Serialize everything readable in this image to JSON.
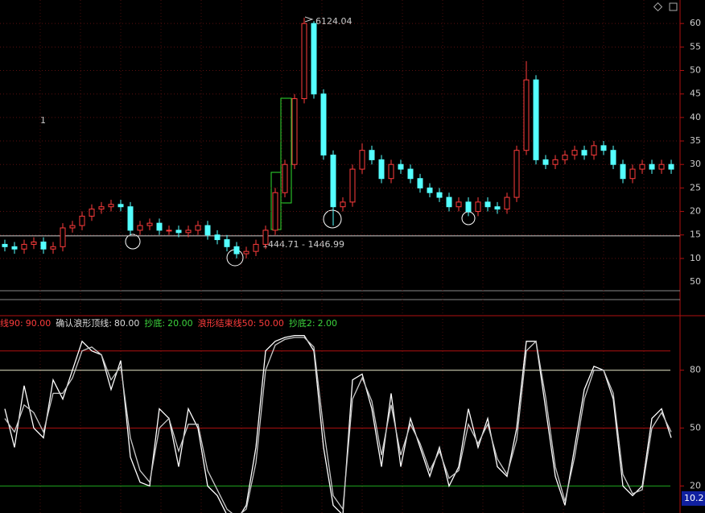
{
  "chart_data": [
    {
      "type": "candlestick",
      "up_color": "#ff3c3c",
      "down_color": "#54ffff",
      "ylim": [
        3.3,
        65
      ],
      "yticks": [
        10,
        15,
        20,
        25,
        30,
        35,
        40,
        45,
        50,
        55,
        60
      ],
      "grid": true,
      "open": [
        13,
        12.5,
        12,
        13,
        13.5,
        12,
        12.5,
        16.5,
        17,
        19,
        20.5,
        21,
        21.5,
        21,
        16,
        17,
        17.5,
        16,
        16,
        15.5,
        16,
        17,
        15,
        14,
        12.5,
        11,
        11.5,
        13,
        16,
        24,
        30,
        44,
        60,
        45,
        32,
        21,
        22,
        29,
        33,
        31,
        27,
        30,
        29,
        27,
        25,
        24,
        23,
        21,
        22,
        20,
        22,
        21,
        20.5,
        23,
        33,
        48,
        31,
        30,
        31,
        32,
        33,
        32,
        34,
        33,
        30,
        27,
        29,
        30,
        29,
        30
      ],
      "high": [
        14,
        13.5,
        14,
        14.5,
        14.5,
        13.5,
        17.5,
        18,
        20,
        21.5,
        22,
        22.5,
        22.5,
        22,
        18,
        18.5,
        18.5,
        17,
        17,
        17,
        18,
        18,
        16,
        15,
        13.5,
        12.5,
        14,
        17,
        25,
        31,
        45,
        61.2,
        60.5,
        46,
        33,
        23,
        30,
        34.5,
        34,
        32,
        31,
        31,
        30,
        28,
        26,
        25,
        24,
        23,
        23,
        23,
        23,
        22,
        24,
        34,
        52,
        49,
        32,
        32,
        33,
        34,
        34,
        35,
        35,
        34,
        31,
        30,
        31,
        31,
        31,
        31
      ],
      "low": [
        11.5,
        11,
        11,
        12,
        11,
        11,
        11.5,
        15.5,
        16,
        18,
        19.5,
        20,
        20,
        15,
        15,
        16,
        15,
        15,
        14.5,
        14.5,
        15,
        14,
        13,
        11.5,
        10,
        10,
        10.5,
        12,
        15,
        23,
        29,
        43,
        44,
        31,
        17,
        20,
        21,
        28,
        30,
        26,
        26,
        28,
        26,
        24,
        23,
        22,
        20,
        20,
        19,
        19,
        20,
        19.5,
        19.5,
        22,
        32,
        30,
        29,
        29,
        30,
        31,
        31,
        31,
        32,
        29,
        26,
        26,
        28,
        28,
        28,
        28
      ],
      "close": [
        12.5,
        12,
        13,
        13.5,
        12,
        12.5,
        16.5,
        17,
        19,
        20.5,
        21,
        21.5,
        21,
        16,
        17,
        17.5,
        16,
        16,
        15.5,
        16,
        17,
        15,
        14,
        12.5,
        11,
        11.5,
        13,
        16,
        24,
        30,
        44,
        60,
        45,
        32,
        21,
        22,
        29,
        33,
        31,
        27,
        30,
        29,
        27,
        25,
        24,
        23,
        21,
        22,
        20,
        22,
        21,
        20.5,
        23,
        33,
        48,
        31,
        30,
        31,
        32,
        33,
        32,
        34,
        33,
        30,
        27,
        29,
        30,
        29,
        30,
        29
      ],
      "support_line": 14.8,
      "annotations": [
        "6124.04",
        "1444.71 - 1446.99",
        "1"
      ],
      "volume_pane": {
        "yticks": [
          50
        ]
      }
    },
    {
      "type": "line",
      "ylim": [
        6,
        107
      ],
      "yticks": [
        20,
        50,
        80
      ],
      "levels": [
        {
          "name": "线90:",
          "value": 90,
          "value_label": "90.00",
          "color": "#ff3c3c",
          "line_color": "#b01010"
        },
        {
          "name": "确认浪形顶线:",
          "value": 80,
          "value_label": "80.00",
          "color": "#dcdcdc",
          "line_color": "#e8e8c8"
        },
        {
          "name": "抄底:",
          "value": 20,
          "value_label": "20.00",
          "color": "#3cd23c",
          "line_color": "#1ea01e"
        },
        {
          "name": "浪形结束线50:",
          "value": 50,
          "value_label": "50.00",
          "color": "#ff3c3c",
          "line_color": "#b01010"
        },
        {
          "name": "抄底2:",
          "value": 2,
          "value_label": "2.00",
          "color": "#3cd23c",
          "line_color": "#1ea01e"
        }
      ],
      "series": [
        {
          "color": "#ffffff",
          "values": [
            60,
            40,
            72,
            50,
            45,
            75,
            65,
            80,
            95,
            90,
            88,
            70,
            85,
            35,
            22,
            20,
            60,
            55,
            30,
            60,
            50,
            20,
            15,
            5,
            2,
            10,
            40,
            90,
            95,
            97,
            98,
            98,
            90,
            40,
            10,
            5,
            75,
            78,
            60,
            30,
            68,
            30,
            55,
            40,
            25,
            40,
            20,
            30,
            60,
            40,
            55,
            30,
            25,
            50,
            95,
            95,
            60,
            25,
            10,
            40,
            70,
            82,
            80,
            65,
            20,
            15,
            20,
            55,
            60,
            45
          ]
        },
        {
          "color": "#c8c8c8",
          "values": [
            55,
            48,
            62,
            58,
            48,
            68,
            68,
            76,
            90,
            92,
            88,
            75,
            82,
            45,
            28,
            22,
            50,
            55,
            38,
            52,
            52,
            28,
            18,
            8,
            4,
            8,
            32,
            80,
            93,
            96,
            97,
            97,
            92,
            50,
            15,
            8,
            65,
            76,
            64,
            36,
            62,
            36,
            52,
            42,
            28,
            38,
            24,
            28,
            52,
            42,
            52,
            34,
            26,
            44,
            90,
            95,
            66,
            30,
            12,
            35,
            65,
            80,
            80,
            68,
            26,
            16,
            18,
            50,
            58,
            48
          ]
        }
      ],
      "current_value": 10.2
    }
  ]
}
